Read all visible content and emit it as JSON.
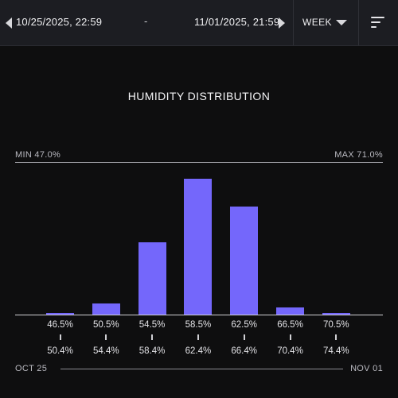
{
  "toolbar": {
    "start_date": "10/25/2025, 22:59",
    "separator": "-",
    "end_date": "11/01/2025, 21:59",
    "period": "WEEK"
  },
  "chart": {
    "title": "HUMIDITY DISTRIBUTION",
    "min_label": "MIN 47.0%",
    "max_label": "MAX 71.0%",
    "range_start": "OCT 25",
    "range_end": "NOV 01"
  },
  "chart_data": {
    "type": "bar",
    "bins": [
      {
        "from": "46.5%",
        "to": "50.4%",
        "value": 1
      },
      {
        "from": "50.5%",
        "to": "54.4%",
        "value": 8
      },
      {
        "from": "54.5%",
        "to": "58.4%",
        "value": 52
      },
      {
        "from": "58.5%",
        "to": "62.4%",
        "value": 98
      },
      {
        "from": "62.5%",
        "to": "66.4%",
        "value": 78
      },
      {
        "from": "66.5%",
        "to": "70.4%",
        "value": 5
      },
      {
        "from": "70.5%",
        "to": "74.4%",
        "value": 1
      }
    ],
    "ylim": [
      0,
      100
    ],
    "bar_color": "#7467fb"
  }
}
